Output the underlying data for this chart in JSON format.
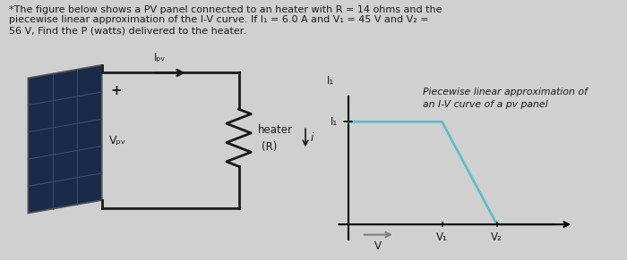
{
  "title_text": "*The figure below shows a PV panel connected to an heater with R = 14 ohms and the\npiecewise linear approximation of the I-V curve. If I₁ = 6.0 A and V₁ = 45 V and V₂ =\n56 V, Find the P (watts) delivered to the heater.",
  "graph_title": "Piecewise linear approximation of\nan I-V curve of a pv panel",
  "curve_color": "#5bbfc8",
  "bg_color": "#d0d0d0",
  "text_color": "#1a1a1a",
  "V_label": "V",
  "V1_label": "V₁",
  "V2_label": "V₂",
  "I1_label": "I₁",
  "heater_label": "heater\n(R)",
  "Vpv_label": "Vₚᵥ",
  "Ipv_label": "Iₚᵥ",
  "plus_label": "+",
  "curve_x": [
    0.0,
    0.48,
    0.76,
    1.05
  ],
  "curve_y": [
    1.0,
    1.0,
    0.0,
    0.0
  ],
  "panel_color": "#1a2a4a",
  "panel_grid_color": "#2a3a5a",
  "panel_cell_color": "#223355",
  "wire_color": "#1a1a1a",
  "resistor_color": "#1a1a1a"
}
